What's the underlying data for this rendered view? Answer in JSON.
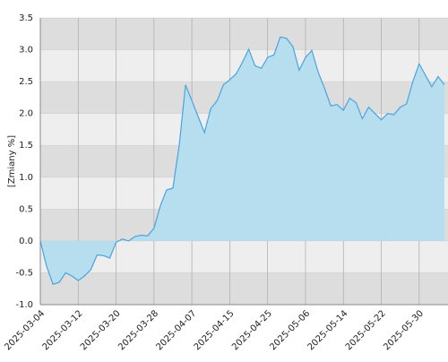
{
  "chart_data": {
    "type": "area",
    "y_label": "[Zmiany %]",
    "x": [
      "2025-03-04",
      null,
      null,
      null,
      null,
      null,
      "2025-03-12",
      null,
      null,
      null,
      null,
      null,
      "2025-03-20",
      null,
      null,
      null,
      null,
      null,
      "2025-03-28",
      null,
      null,
      null,
      null,
      null,
      "2025-04-07",
      null,
      null,
      null,
      null,
      null,
      "2025-04-15",
      null,
      null,
      null,
      null,
      null,
      "2025-04-25",
      null,
      null,
      null,
      null,
      null,
      "2025-05-06",
      null,
      null,
      null,
      null,
      null,
      "2025-05-14",
      null,
      null,
      null,
      null,
      null,
      "2025-05-22",
      null,
      null,
      null,
      null,
      null,
      "2025-05-30",
      null,
      null,
      null,
      null
    ],
    "values": [
      0.0,
      -0.4,
      -0.68,
      -0.65,
      -0.5,
      -0.55,
      -0.62,
      -0.55,
      -0.45,
      -0.22,
      -0.23,
      -0.27,
      -0.02,
      0.03,
      0.0,
      0.07,
      0.09,
      0.08,
      0.2,
      0.55,
      0.8,
      0.83,
      1.5,
      2.45,
      2.2,
      1.95,
      1.7,
      2.08,
      2.2,
      2.45,
      2.53,
      2.62,
      2.8,
      3.01,
      2.75,
      2.71,
      2.88,
      2.92,
      3.2,
      3.18,
      3.05,
      2.68,
      2.88,
      2.99,
      2.65,
      2.4,
      2.12,
      2.14,
      2.05,
      2.24,
      2.17,
      1.92,
      2.1,
      2.0,
      1.9,
      2.0,
      1.98,
      2.1,
      2.15,
      2.5,
      2.78,
      2.6,
      2.42,
      2.58,
      2.45
    ],
    "color": "#4aa3df",
    "fill": "#b7deee",
    "ylim": [
      -1.0,
      3.5
    ],
    "yticks": [
      {
        "value": -1.0,
        "label": "-1.0"
      },
      -0.5,
      {
        "value": 0,
        "label": "0.0"
      },
      0.5,
      {
        "value": 1,
        "label": "1.0"
      },
      1.5,
      {
        "value": 2,
        "label": "2.0"
      },
      2.5,
      {
        "value": 3,
        "label": "3.0"
      },
      3.5
    ],
    "grid": true
  }
}
